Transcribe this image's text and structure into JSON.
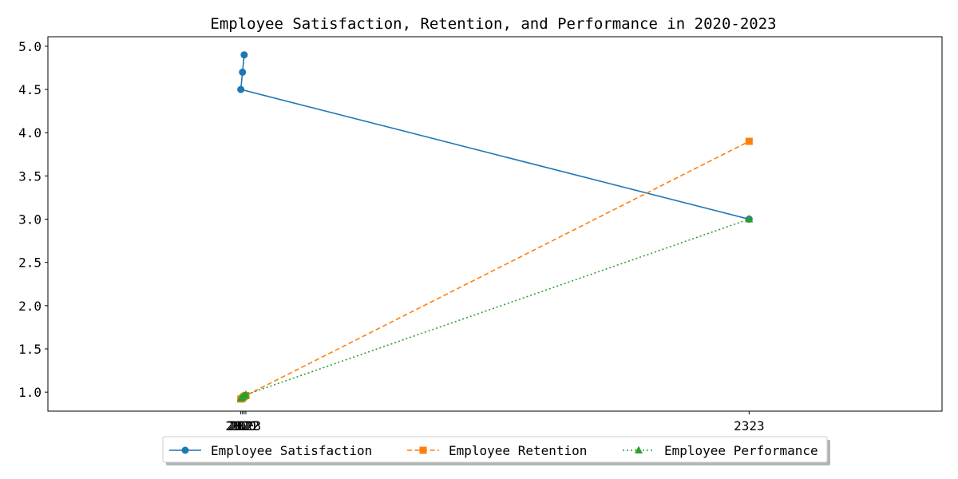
{
  "chart_data": {
    "type": "line",
    "title": "Employee Satisfaction, Retention, and Performance in 2020-2023",
    "xlabel": "",
    "ylabel": "",
    "x_tick_labels": [
      "2020",
      "2021",
      "2022",
      "2023",
      "2323"
    ],
    "y_tick_labels": [
      "1.0",
      "1.5",
      "2.0",
      "2.5",
      "3.0",
      "3.5",
      "4.0",
      "4.5",
      "5.0"
    ],
    "xlim": [
      1905,
      2438
    ],
    "ylim": [
      0.78,
      5.11
    ],
    "grid": false,
    "legend_position": "bottom-center",
    "series": [
      {
        "name": "Employee Satisfaction",
        "color": "#1f77b4",
        "linestyle": "solid",
        "marker": "circle",
        "x": [
          2022,
          2021,
          2020,
          2323
        ],
        "y": [
          4.9,
          4.7,
          4.5,
          3.0
        ]
      },
      {
        "name": "Employee Retention",
        "color": "#ff7f0e",
        "linestyle": "dashed",
        "marker": "square",
        "x": [
          2020,
          2021,
          2022,
          2023,
          2323
        ],
        "y": [
          0.92,
          0.93,
          0.95,
          0.96,
          3.9
        ]
      },
      {
        "name": "Employee Performance",
        "color": "#2ca02c",
        "linestyle": "dotted",
        "marker": "triangle",
        "x": [
          2020,
          2021,
          2022,
          2023,
          2323
        ],
        "y": [
          0.93,
          0.94,
          0.96,
          0.97,
          3.0
        ]
      }
    ]
  }
}
